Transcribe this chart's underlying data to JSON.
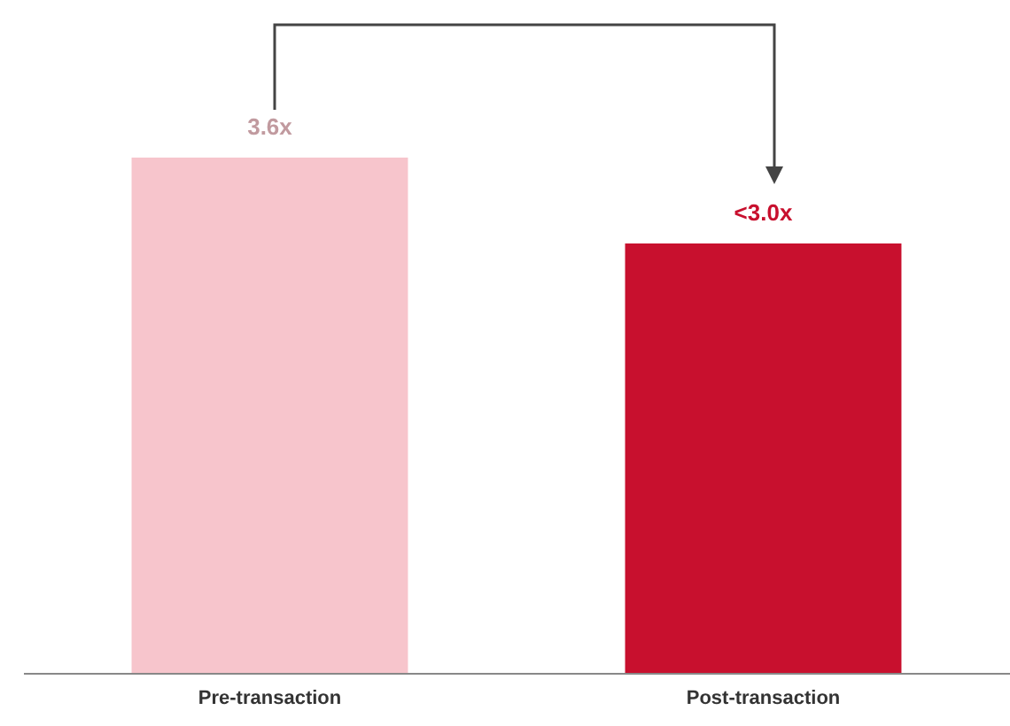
{
  "chart_data": {
    "type": "bar",
    "categories": [
      "Pre-transaction",
      "Post-transaction"
    ],
    "values": [
      3.6,
      3.0
    ],
    "colors": [
      "#f7c5cc",
      "#c8102e"
    ],
    "value_labels": [
      "3.6x",
      "<3.0x"
    ]
  }
}
